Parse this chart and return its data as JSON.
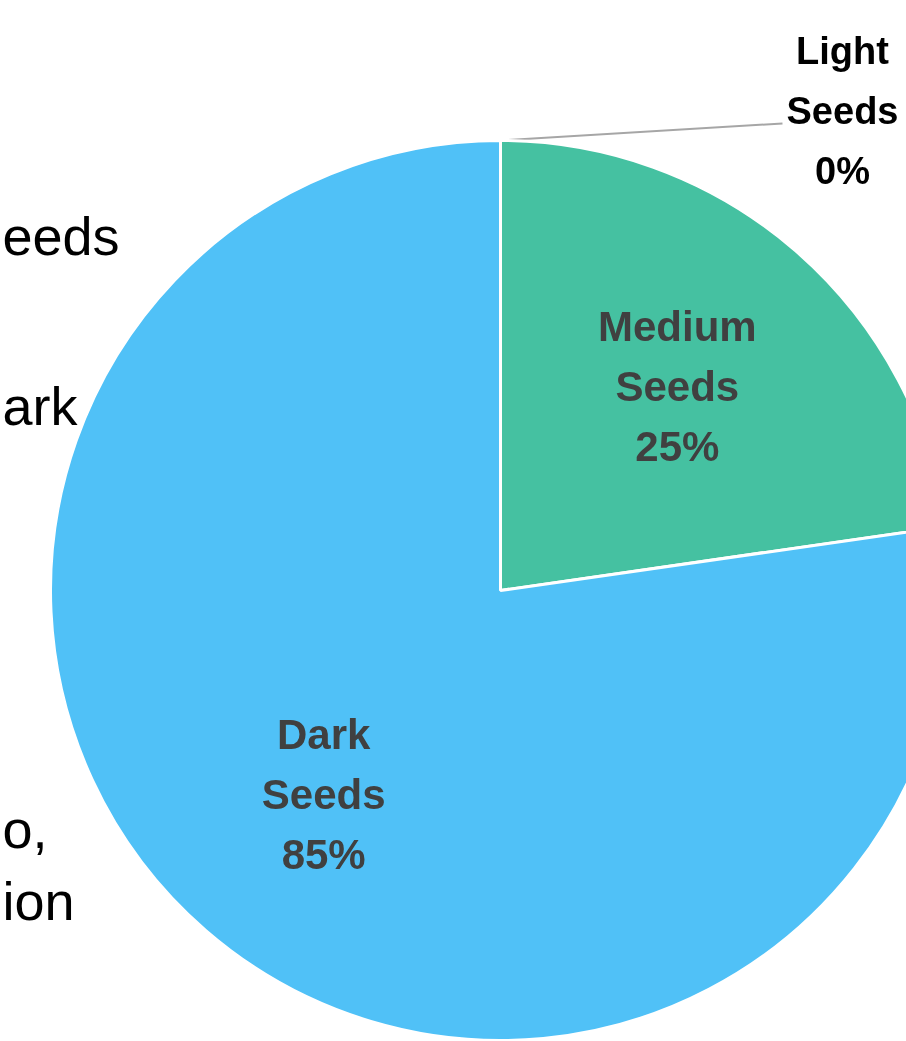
{
  "chart_data": {
    "type": "pie",
    "categories": [
      "Light Seeds",
      "Medium Seeds",
      "Dark Seeds"
    ],
    "values": [
      0,
      25,
      85
    ],
    "value_labels": [
      "0%",
      "25%",
      "85%"
    ],
    "colors": [
      "#a5a5a5",
      "#45c1a1",
      "#50c1f7"
    ],
    "data_labels": true,
    "annotations": [
      "eeds",
      "ark",
      "o,",
      "ion"
    ]
  }
}
